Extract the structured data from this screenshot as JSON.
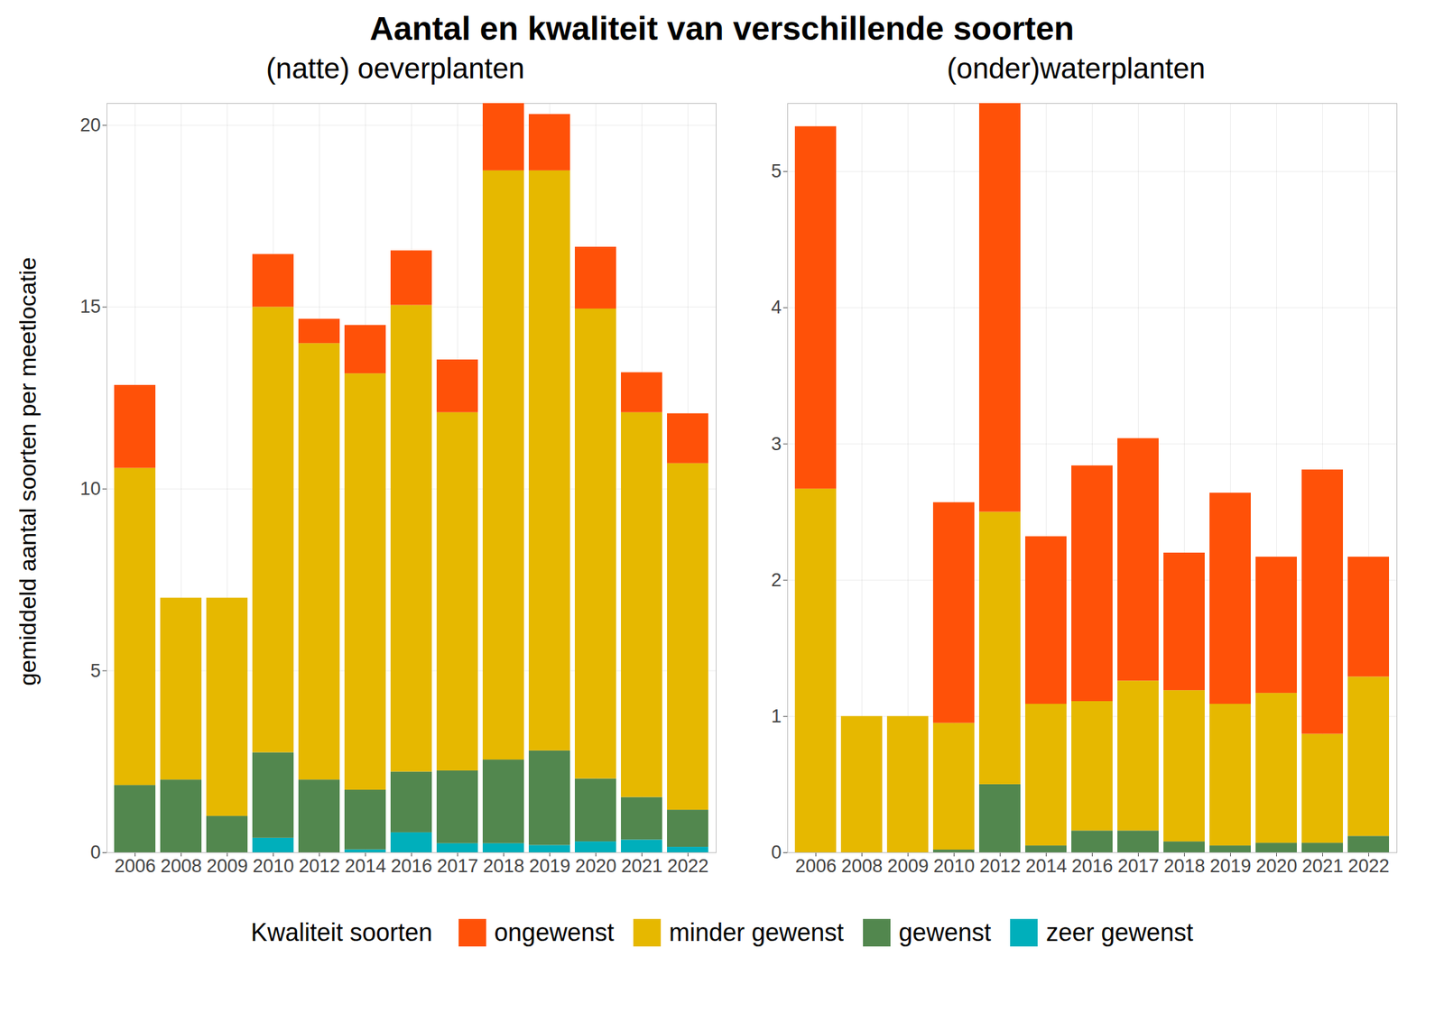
{
  "figure": {
    "title": "Aantal en kwaliteit van verschillende soorten",
    "y_label": "gemiddeld aantal soorten per meetlocatie",
    "legend_title": "Kwaliteit soorten"
  },
  "chart_data": [
    {
      "type": "bar",
      "title": "(natte) oeverplanten",
      "stacked": true,
      "grid": true,
      "legend": "bottom",
      "categories": [
        "2006",
        "2008",
        "2009",
        "2010",
        "2012",
        "2014",
        "2016",
        "2017",
        "2018",
        "2019",
        "2020",
        "2021",
        "2022"
      ],
      "ylim": [
        0,
        20.6
      ],
      "yticks": [
        0,
        5,
        10,
        15,
        20
      ],
      "series": [
        {
          "name": "ongewenst",
          "color": "#FF5108",
          "values": [
            2.28,
            0,
            0,
            1.45,
            0.67,
            1.33,
            1.5,
            1.45,
            1.85,
            1.55,
            1.7,
            1.1,
            1.37
          ]
        },
        {
          "name": "minder gewenst",
          "color": "#E6B800",
          "values": [
            8.72,
            5.0,
            6.0,
            12.25,
            12.0,
            11.45,
            12.83,
            9.85,
            16.2,
            15.95,
            12.92,
            10.58,
            9.53
          ]
        },
        {
          "name": "gewenst",
          "color": "#52874E",
          "values": [
            1.85,
            2.0,
            1.0,
            2.35,
            2.0,
            1.64,
            1.67,
            2.0,
            2.3,
            2.6,
            1.73,
            1.17,
            1.02
          ]
        },
        {
          "name": "zeer gewenst",
          "color": "#00AFBB",
          "values": [
            0,
            0,
            0,
            0.4,
            0,
            0.08,
            0.55,
            0.25,
            0.25,
            0.2,
            0.3,
            0.35,
            0.15
          ]
        }
      ]
    },
    {
      "type": "bar",
      "title": "(onder)waterplanten",
      "stacked": true,
      "grid": true,
      "legend": "bottom",
      "categories": [
        "2006",
        "2008",
        "2009",
        "2010",
        "2012",
        "2014",
        "2016",
        "2017",
        "2018",
        "2019",
        "2020",
        "2021",
        "2022"
      ],
      "ylim": [
        0,
        5.5
      ],
      "yticks": [
        0,
        1,
        2,
        3,
        4,
        5
      ],
      "series": [
        {
          "name": "ongewenst",
          "color": "#FF5108",
          "values": [
            2.66,
            0,
            0,
            1.62,
            3.0,
            1.23,
            1.73,
            1.78,
            1.01,
            1.55,
            1.0,
            1.94,
            0.88
          ]
        },
        {
          "name": "minder gewenst",
          "color": "#E6B800",
          "values": [
            2.67,
            1.0,
            1.0,
            0.93,
            2.0,
            1.04,
            0.95,
            1.1,
            1.11,
            1.04,
            1.1,
            0.8,
            1.17
          ]
        },
        {
          "name": "gewenst",
          "color": "#52874E",
          "values": [
            0,
            0,
            0,
            0.02,
            0.5,
            0.05,
            0.16,
            0.16,
            0.08,
            0.05,
            0.07,
            0.07,
            0.12
          ]
        },
        {
          "name": "zeer gewenst",
          "color": "#00AFBB",
          "values": [
            0,
            0,
            0,
            0,
            0,
            0,
            0,
            0,
            0,
            0,
            0,
            0,
            0
          ]
        }
      ]
    }
  ]
}
